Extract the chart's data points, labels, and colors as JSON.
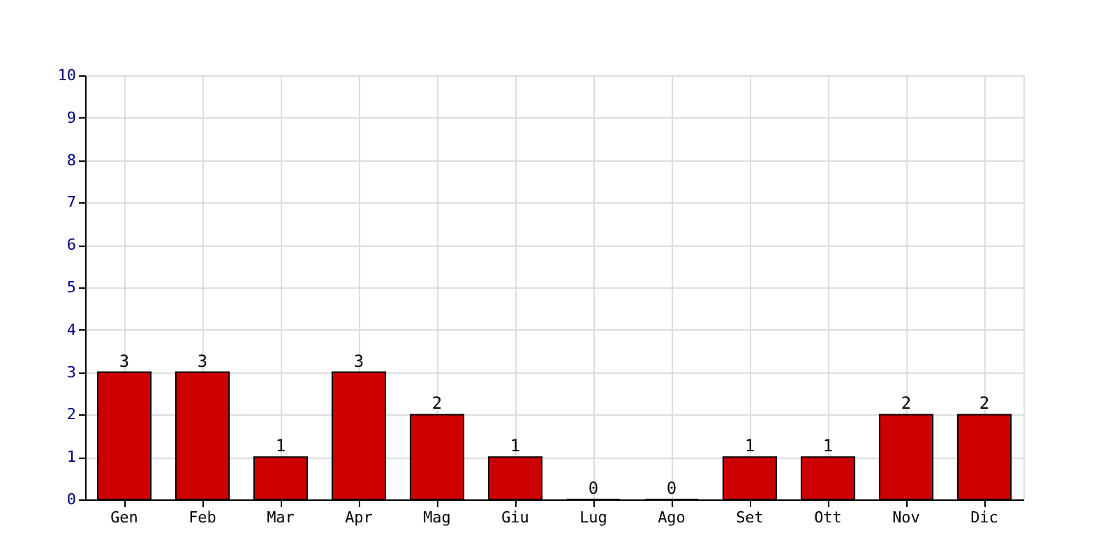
{
  "chart_data": {
    "type": "bar",
    "categories": [
      "Gen",
      "Feb",
      "Mar",
      "Apr",
      "Mag",
      "Giu",
      "Lug",
      "Ago",
      "Set",
      "Ott",
      "Nov",
      "Dic"
    ],
    "values": [
      3,
      3,
      1,
      3,
      2,
      1,
      0,
      0,
      1,
      1,
      2,
      2
    ],
    "color": "#cc0000",
    "ylim": [
      0,
      10
    ],
    "yticks": [
      0,
      1,
      2,
      3,
      4,
      5,
      6,
      7,
      8,
      9,
      10
    ],
    "grid": true,
    "data_labels": true
  }
}
